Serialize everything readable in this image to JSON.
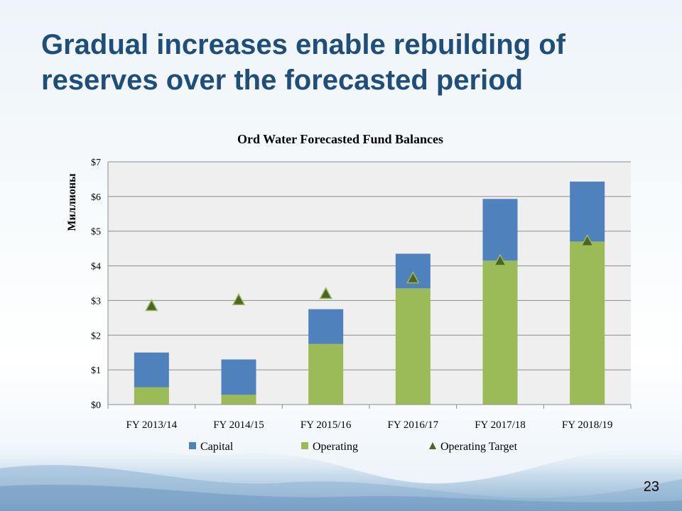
{
  "slide": {
    "title": "Gradual increases enable rebuilding of reserves over the forecasted period",
    "page_number": "23"
  },
  "colors": {
    "title": "#1f4e79",
    "capital": "#4f81bd",
    "operating": "#9bbb59",
    "target": "#4f6228",
    "plot_background": "#efefef"
  },
  "chart_data": {
    "type": "bar",
    "stacked": true,
    "title": "Ord Water Forecasted Fund Balances",
    "ylabel": "Миллионы",
    "xlabel": "",
    "categories": [
      "FY 2013/14",
      "FY 2014/15",
      "FY 2015/16",
      "FY 2016/17",
      "FY 2017/18",
      "FY 2018/19"
    ],
    "series": [
      {
        "name": "Operating",
        "kind": "bar",
        "values": [
          0.5,
          0.28,
          1.75,
          3.35,
          4.15,
          4.7
        ]
      },
      {
        "name": "Capital",
        "kind": "bar",
        "values": [
          1.0,
          1.02,
          1.0,
          1.0,
          1.78,
          1.73
        ]
      },
      {
        "name": "Operating Target",
        "kind": "marker",
        "marker": "triangle",
        "values": [
          2.85,
          3.02,
          3.2,
          3.65,
          4.15,
          4.72
        ]
      }
    ],
    "ylim": [
      0,
      7
    ],
    "yticks": [
      0,
      1,
      2,
      3,
      4,
      5,
      6,
      7
    ],
    "ytick_labels": [
      "$0",
      "$1",
      "$2",
      "$3",
      "$4",
      "$5",
      "$6",
      "$7"
    ],
    "grid": true,
    "legend": {
      "position": "bottom",
      "entries": [
        "Capital",
        "Operating",
        "Operating Target"
      ]
    }
  }
}
